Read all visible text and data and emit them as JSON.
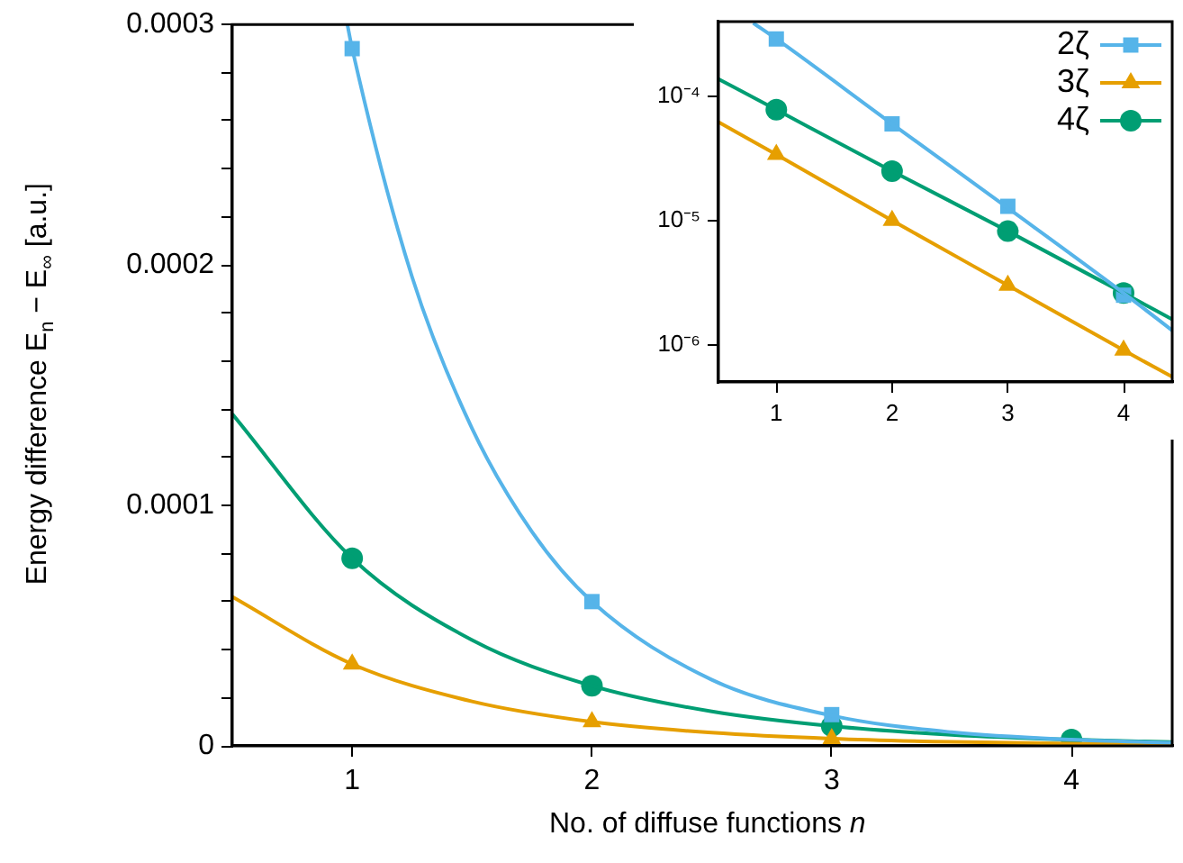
{
  "chart_data": [
    {
      "type": "scatter",
      "xlabel": "No. of diffuse functions $_{}$n",
      "ylabel": "Energy difference E$_{n}$ − E$_{∞}$ [a.u.]",
      "xlim": [
        0.5,
        4.42
      ],
      "ylim": [
        0,
        0.0003
      ],
      "xticks": [
        1,
        2,
        3,
        4
      ],
      "yticks": [
        0,
        {
          "value": 2e-05,
          "label": null
        },
        {
          "value": 4e-05,
          "label": null
        },
        {
          "value": 6e-05,
          "label": null
        },
        {
          "value": 8e-05,
          "label": null
        },
        0.0001,
        {
          "value": 0.00012,
          "label": null
        },
        {
          "value": 0.00014,
          "label": null
        },
        {
          "value": 0.00016,
          "label": null
        },
        {
          "value": 0.00018,
          "label": null
        },
        0.0002,
        {
          "value": 0.00022,
          "label": null
        },
        {
          "value": 0.00024,
          "label": null
        },
        {
          "value": 0.00026,
          "label": null
        },
        {
          "value": 0.00028,
          "label": null
        },
        0.0003
      ],
      "grid": false,
      "series": [
        {
          "type": "line",
          "color": "#56b4e9",
          "marker": "none",
          "x": [
            0.98,
            1,
            1.25,
            1.5,
            1.75,
            2,
            2.5,
            3,
            3.5,
            4,
            4.42
          ],
          "values": [
            0.0003,
            0.00029,
            0.000195,
            0.000132,
            8.9e-05,
            6e-05,
            2.75e-05,
            1.26e-05,
            5.7e-06,
            2.6e-06,
            1.3e-06
          ]
        },
        {
          "type": "line",
          "color": "#e69f00",
          "marker": "none",
          "x": [
            0.5,
            1,
            1.5,
            2,
            2.5,
            3,
            3.5,
            4,
            4.42
          ],
          "values": [
            6.2e-05,
            3.4e-05,
            1.85e-05,
            1e-05,
            5.5e-06,
            3e-06,
            1.65e-06,
            9e-07,
            5.5e-07
          ]
        },
        {
          "type": "line",
          "color": "#009e73",
          "marker": "none",
          "x": [
            0.5,
            1,
            1.5,
            2,
            2.5,
            3,
            3.5,
            4,
            4.42
          ],
          "values": [
            0.000138,
            7.8e-05,
            4.4e-05,
            2.5e-05,
            1.43e-05,
            8.2e-06,
            4.6e-06,
            2.6e-06,
            1.6e-06
          ]
        },
        {
          "type": "scatter",
          "color": "#56b4e9",
          "marker": "square",
          "x": [
            1,
            2,
            3
          ],
          "values": [
            0.00029,
            6e-05,
            1.3e-05
          ]
        },
        {
          "type": "scatter",
          "color": "#e69f00",
          "marker": "triangle",
          "x": [
            1,
            2,
            3
          ],
          "values": [
            3.4e-05,
            1e-05,
            3e-06
          ]
        },
        {
          "type": "scatter",
          "color": "#009e73",
          "marker": "circle",
          "x": [
            1,
            2,
            3,
            4
          ],
          "values": [
            7.8e-05,
            2.5e-05,
            8.2e-06,
            2.6e-06
          ]
        }
      ]
    },
    {
      "type": "scatter",
      "log": "y",
      "xlim": [
        0.5,
        4.42
      ],
      "ylim": [
        5e-07,
        0.0004
      ],
      "xticks": [
        1,
        2,
        3,
        4
      ],
      "yticks": [
        {
          "value": 1e-06,
          "label": "10⁻⁶"
        },
        {
          "value": 1e-05,
          "label": "10⁻⁵"
        },
        {
          "value": 0.0001,
          "label": "10⁻⁴"
        }
      ],
      "grid": false,
      "legend": "top right",
      "series": [
        {
          "type": "line",
          "color": "#56b4e9",
          "marker": "none",
          "x": [
            0.8,
            1,
            2,
            3,
            4,
            4.42
          ],
          "values": [
            0.00039,
            0.00029,
            6e-05,
            1.26e-05,
            2.6e-06,
            1.3e-06
          ]
        },
        {
          "type": "line",
          "color": "#e69f00",
          "marker": "none",
          "x": [
            0.5,
            1,
            2,
            3,
            4,
            4.42
          ],
          "values": [
            6.2e-05,
            3.4e-05,
            1e-05,
            3e-06,
            9e-07,
            5.5e-07
          ]
        },
        {
          "type": "line",
          "color": "#009e73",
          "marker": "none",
          "x": [
            0.5,
            1,
            2,
            3,
            4,
            4.42
          ],
          "values": [
            0.000138,
            7.8e-05,
            2.5e-05,
            8.2e-06,
            2.6e-06,
            1.6e-06
          ]
        },
        {
          "type": "scatter",
          "name": "2ζ",
          "color": "#56b4e9",
          "marker": "square",
          "x": [
            1,
            2,
            3,
            4
          ],
          "values": [
            0.00029,
            6e-05,
            1.3e-05,
            2.5e-06
          ]
        },
        {
          "type": "scatter",
          "name": "3ζ",
          "color": "#e69f00",
          "marker": "triangle",
          "x": [
            1,
            2,
            3,
            4
          ],
          "values": [
            3.4e-05,
            1e-05,
            3e-06,
            9e-07
          ]
        },
        {
          "type": "scatter",
          "name": "4ζ",
          "color": "#009e73",
          "marker": "circle",
          "x": [
            1,
            2,
            3,
            4
          ],
          "values": [
            7.8e-05,
            2.5e-05,
            8.2e-06,
            2.6e-06
          ]
        }
      ]
    }
  ]
}
